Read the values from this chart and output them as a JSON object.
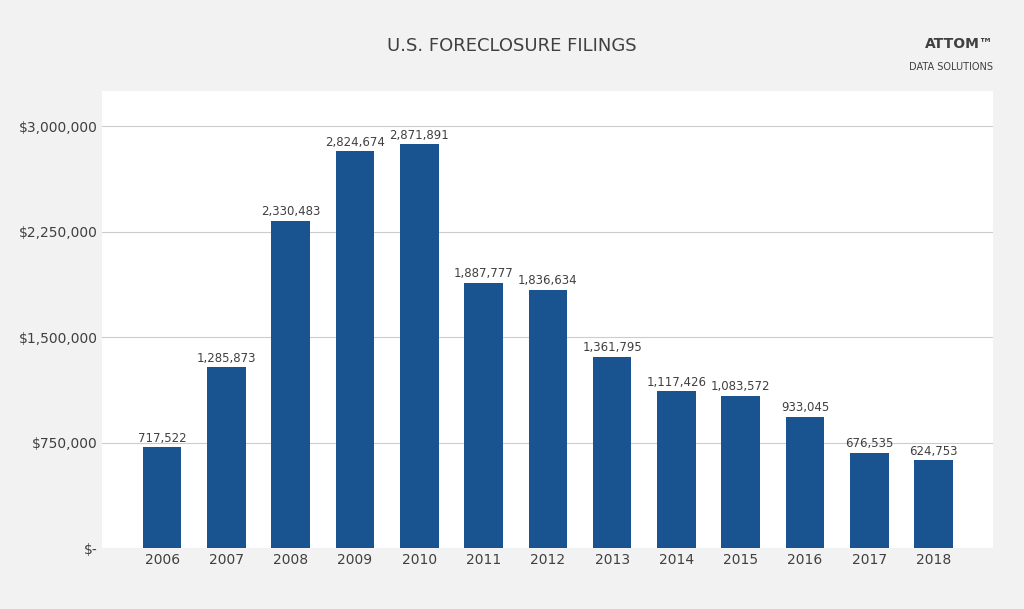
{
  "title": "U.S. FORECLOSURE FILINGS",
  "categories": [
    "2006",
    "2007",
    "2008",
    "2009",
    "2010",
    "2011",
    "2012",
    "2013",
    "2014",
    "2015",
    "2016",
    "2017",
    "2018"
  ],
  "values": [
    717522,
    1285873,
    2330483,
    2824674,
    2871891,
    1887777,
    1836634,
    1361795,
    1117426,
    1083572,
    933045,
    676535,
    624753
  ],
  "bar_color": "#1a5490",
  "background_color": "#f2f2f2",
  "plot_background_color": "#ffffff",
  "title_fontsize": 13,
  "tick_label_fontsize": 10,
  "value_label_fontsize": 8.5,
  "ylim": [
    0,
    3250000
  ],
  "yticks": [
    0,
    750000,
    1500000,
    2250000,
    3000000
  ],
  "ytick_labels": [
    "$-",
    "$750,000",
    "$1,500,000",
    "$2,250,000",
    "$3,000,000"
  ],
  "grid_color": "#cccccc",
  "text_color": "#404040",
  "attom_text": "ATTOM™\nDATA SOLUTIONS",
  "attom_color_main": "#404040",
  "attom_color_red": "#cc0000"
}
